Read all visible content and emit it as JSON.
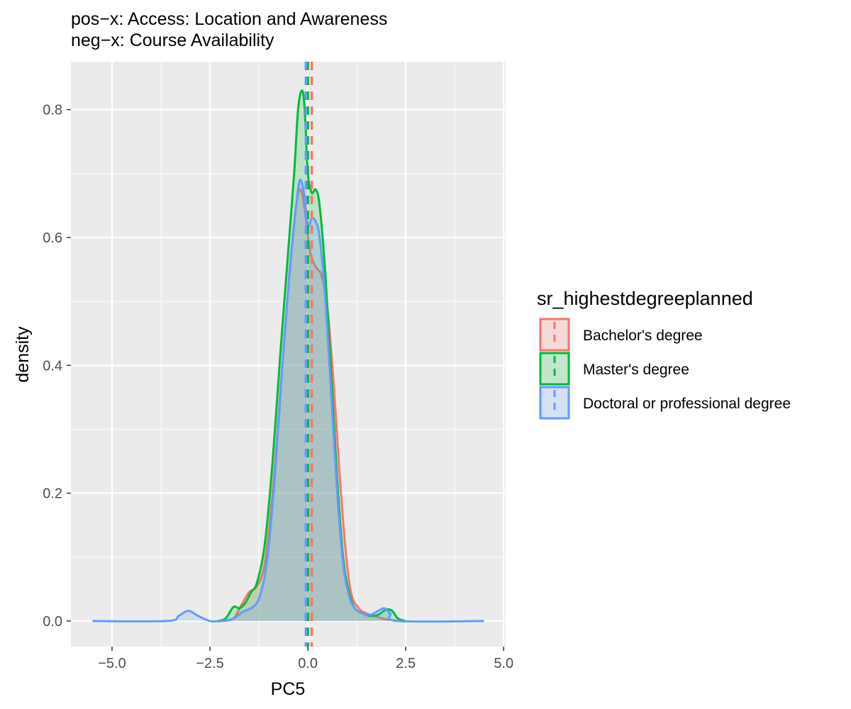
{
  "chart_data": {
    "type": "area",
    "title": "pos−x: Access: Location and Awareness",
    "subtitle": "neg−x: Course Availability",
    "xlabel": "PC5",
    "ylabel": "density",
    "xlim": [
      -6.05,
      5.05
    ],
    "ylim": [
      -0.04,
      0.875
    ],
    "xticks": [
      -5.0,
      -2.5,
      0.0,
      2.5,
      5.0
    ],
    "xtick_labels": [
      "−5.0",
      "−2.5",
      "0.0",
      "2.5",
      "5.0"
    ],
    "yticks": [
      0.0,
      0.2,
      0.4,
      0.6,
      0.8
    ],
    "ytick_labels": [
      "0.0",
      "0.2",
      "0.4",
      "0.6",
      "0.8"
    ],
    "grid": true,
    "legend": {
      "title": "sr_highestdegreeplanned",
      "position": "right"
    },
    "series": [
      {
        "name": "Bachelor's degree",
        "color": "#F8766D",
        "mean": 0.1,
        "x": [
          -2.2,
          -1.9,
          -1.7,
          -1.5,
          -1.3,
          -1.1,
          -0.9,
          -0.7,
          -0.5,
          -0.35,
          -0.25,
          -0.15,
          -0.05,
          0.05,
          0.15,
          0.25,
          0.35,
          0.5,
          0.65,
          0.8,
          0.95,
          1.1,
          1.3,
          1.5,
          1.7,
          1.9,
          2.1,
          2.3
        ],
        "y": [
          0.0,
          0.004,
          0.025,
          0.045,
          0.055,
          0.09,
          0.2,
          0.36,
          0.52,
          0.62,
          0.67,
          0.67,
          0.63,
          0.58,
          0.56,
          0.55,
          0.54,
          0.49,
          0.38,
          0.24,
          0.12,
          0.045,
          0.02,
          0.012,
          0.008,
          0.004,
          0.002,
          0.0
        ]
      },
      {
        "name": "Master's degree",
        "color": "#00BA38",
        "mean": 0.0,
        "x": [
          -2.3,
          -2.1,
          -1.9,
          -1.75,
          -1.6,
          -1.45,
          -1.3,
          -1.1,
          -0.9,
          -0.7,
          -0.5,
          -0.35,
          -0.25,
          -0.15,
          -0.08,
          0.0,
          0.1,
          0.2,
          0.3,
          0.45,
          0.6,
          0.75,
          0.9,
          1.05,
          1.2,
          1.4,
          1.6,
          1.8,
          2.0,
          2.15,
          2.3,
          2.5
        ],
        "y": [
          0.0,
          0.004,
          0.022,
          0.02,
          0.028,
          0.045,
          0.06,
          0.12,
          0.25,
          0.42,
          0.58,
          0.7,
          0.8,
          0.83,
          0.8,
          0.7,
          0.67,
          0.675,
          0.65,
          0.54,
          0.38,
          0.22,
          0.1,
          0.045,
          0.02,
          0.012,
          0.008,
          0.01,
          0.018,
          0.016,
          0.004,
          0.0
        ]
      },
      {
        "name": "Doctoral or professional degree",
        "color": "#619CFF",
        "mean": -0.05,
        "x": [
          -5.5,
          -3.6,
          -3.3,
          -3.05,
          -2.8,
          -2.5,
          -2.2,
          -1.9,
          -1.65,
          -1.45,
          -1.25,
          -1.05,
          -0.85,
          -0.65,
          -0.45,
          -0.3,
          -0.2,
          -0.1,
          0.0,
          0.1,
          0.2,
          0.3,
          0.45,
          0.6,
          0.75,
          0.9,
          1.05,
          1.2,
          1.4,
          1.6,
          1.8,
          1.95,
          2.1,
          2.3,
          4.5
        ],
        "y": [
          0.0,
          0.0,
          0.008,
          0.016,
          0.008,
          0.0,
          0.0,
          0.004,
          0.015,
          0.02,
          0.035,
          0.09,
          0.22,
          0.4,
          0.56,
          0.65,
          0.69,
          0.67,
          0.62,
          0.63,
          0.625,
          0.6,
          0.5,
          0.35,
          0.2,
          0.09,
          0.04,
          0.02,
          0.012,
          0.01,
          0.016,
          0.02,
          0.012,
          0.0,
          0.0
        ]
      }
    ]
  }
}
